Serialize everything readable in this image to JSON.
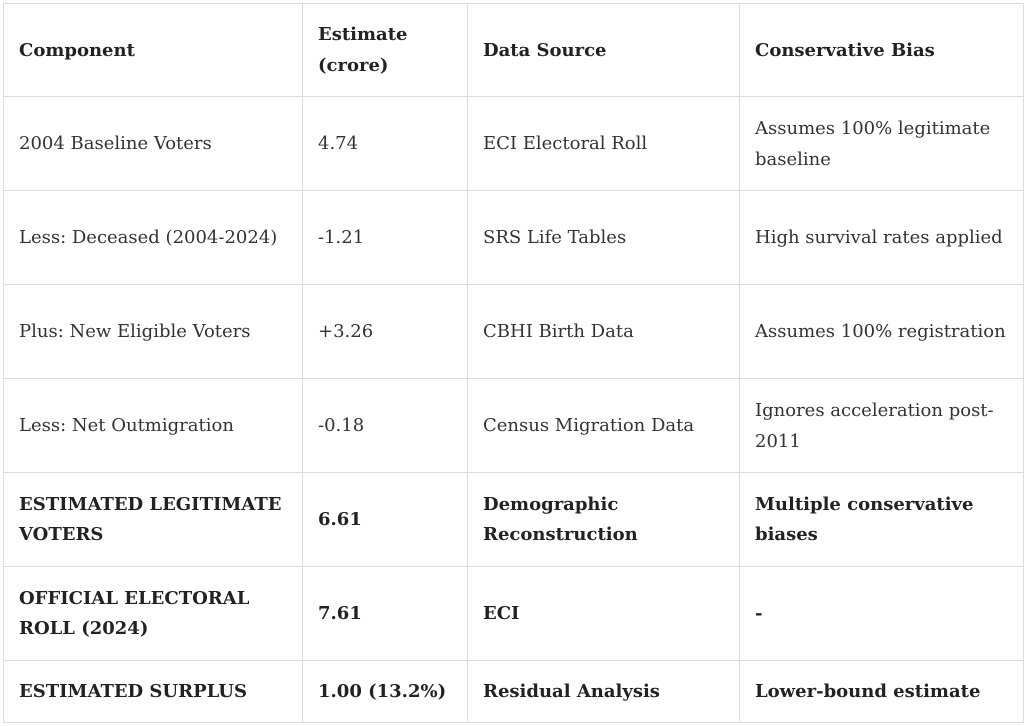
{
  "table": {
    "headers": [
      "Component",
      "Estimate (crore)",
      "Data Source",
      "Conservative Bias"
    ],
    "rows": [
      {
        "component": "2004 Baseline Voters",
        "estimate": "4.74",
        "source": "ECI Electoral Roll",
        "bias": "Assumes 100% legitimate baseline"
      },
      {
        "component": "Less: Deceased (2004-2024)",
        "estimate": "-1.21",
        "source": "SRS Life Tables",
        "bias": "High survival rates applied"
      },
      {
        "component": "Plus: New Eligible Voters",
        "estimate": "+3.26",
        "source": "CBHI Birth Data",
        "bias": "Assumes 100% registration"
      },
      {
        "component": "Less: Net Outmigration",
        "estimate": "-0.18",
        "source": "Census Migration Data",
        "bias": "Ignores acceleration post-2011"
      },
      {
        "component": "ESTIMATED LEGITIMATE VOTERS",
        "estimate": "6.61",
        "source": "Demographic Reconstruction",
        "bias": "Multiple conservative biases"
      },
      {
        "component": "OFFICIAL ELECTORAL ROLL (2024)",
        "estimate": "7.61",
        "source": "ECI",
        "bias": "-"
      },
      {
        "component": "ESTIMATED SURPLUS",
        "estimate": "1.00 (13.2%)",
        "source": "Residual Analysis",
        "bias": "Lower-bound estimate"
      }
    ]
  }
}
